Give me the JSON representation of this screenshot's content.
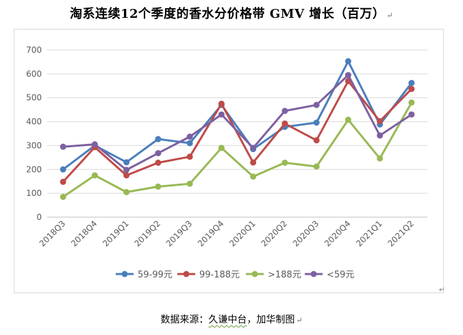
{
  "header": {
    "title": "淘系连续12个季度的香水分价格带 GMV 增长（百万）",
    "title_mark": "↵"
  },
  "footer": {
    "source_prefix": "数据来源：",
    "source_name": "久谦中台",
    "source_suffix": "，加华制图",
    "source_mark": "↵",
    "corner_mark": "↵"
  },
  "chart_data": {
    "type": "line",
    "title": "淘系连续12个季度的香水分价格带 GMV 增长（百万）",
    "xlabel": "",
    "ylabel": "",
    "ylim": [
      0,
      700
    ],
    "yticks": [
      "0",
      "100",
      "200",
      "300",
      "400",
      "500",
      "600",
      "700"
    ],
    "grid": true,
    "legend_position": "bottom",
    "categories": [
      "2018Q3",
      "2018Q4",
      "2019Q1",
      "2019Q2",
      "2019Q3",
      "2019Q4",
      "2020Q1",
      "2020Q2",
      "2020Q3",
      "2020Q4",
      "2021Q1",
      "2021Q2"
    ],
    "series": [
      {
        "name": "59-99元",
        "color": "#4a7ebb",
        "values": [
          200,
          300,
          230,
          327,
          310,
          470,
          285,
          378,
          396,
          653,
          388,
          562
        ]
      },
      {
        "name": "99-188元",
        "color": "#be4b48",
        "values": [
          148,
          293,
          175,
          228,
          253,
          475,
          229,
          392,
          322,
          570,
          402,
          537
        ]
      },
      {
        "name": ">188元",
        "color": "#98b954",
        "values": [
          85,
          175,
          105,
          128,
          140,
          290,
          170,
          228,
          212,
          408,
          246,
          480
        ]
      },
      {
        "name": "<59元",
        "color": "#7d60a0",
        "values": [
          295,
          305,
          198,
          268,
          337,
          430,
          290,
          445,
          470,
          595,
          342,
          430
        ]
      }
    ]
  }
}
